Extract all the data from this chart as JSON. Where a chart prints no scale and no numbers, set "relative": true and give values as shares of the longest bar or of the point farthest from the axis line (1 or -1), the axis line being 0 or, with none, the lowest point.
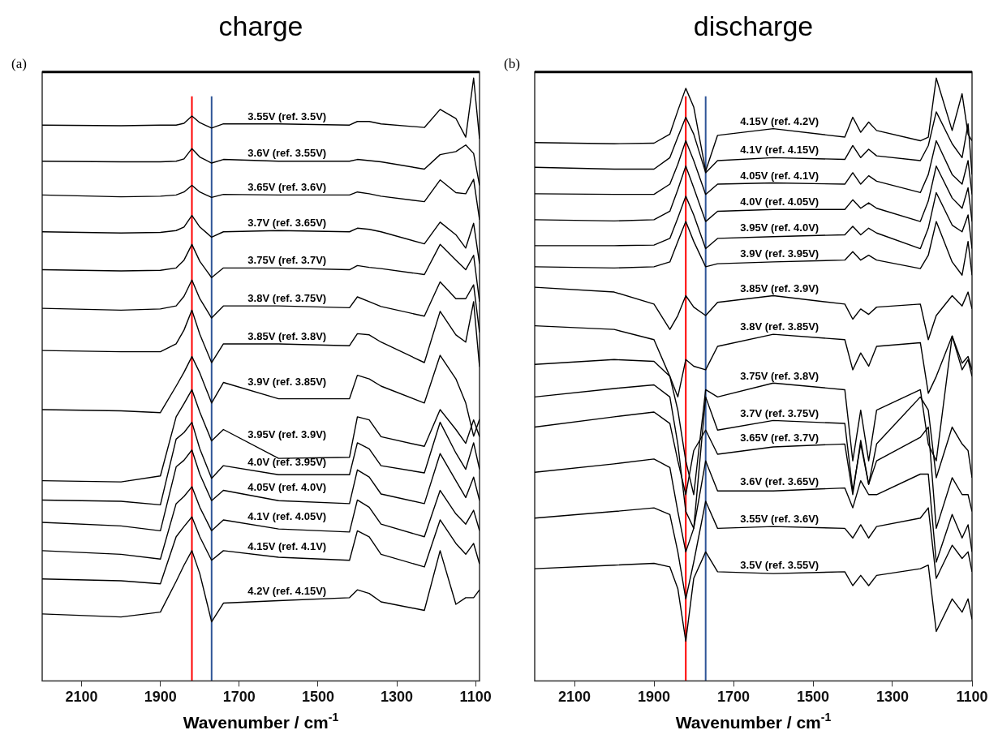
{
  "chart_data": [
    {
      "type": "line",
      "title": "charge",
      "xlabel": "Wavenumber / cm$^{-1}$",
      "annotations": [
        "(a)"
      ],
      "relative": true,
      "marker": "none",
      "xlim": [
        2200,
        1090
      ],
      "xticks": [
        2100,
        1900,
        1700,
        1500,
        1300,
        1100
      ],
      "x": [
        2200,
        2000,
        1900,
        1860,
        1840,
        1820,
        1800,
        1770,
        1740,
        1600,
        1420,
        1400,
        1370,
        1340,
        1230,
        1190,
        1150,
        1125,
        1105,
        1090
      ],
      "ref_lines": [
        {
          "axis": "x",
          "value": 1820,
          "color": "#ff0000"
        },
        {
          "axis": "x",
          "value": 1770,
          "color": "#2f5597"
        }
      ],
      "series": [
        {
          "name": "3.55V (ref. 3.5V)",
          "color": "#000000",
          "values": [
            0.922,
            0.921,
            0.922,
            0.922,
            0.925,
            0.937,
            0.926,
            0.917,
            0.924,
            0.924,
            0.922,
            0.928,
            0.928,
            0.924,
            0.918,
            0.948,
            0.933,
            0.902,
            1.0,
            0.899
          ]
        },
        {
          "name": "3.6V (ref. 3.55V)",
          "color": "#000000",
          "values": [
            0.862,
            0.861,
            0.861,
            0.862,
            0.866,
            0.883,
            0.869,
            0.859,
            0.865,
            0.862,
            0.862,
            0.865,
            0.863,
            0.861,
            0.849,
            0.873,
            0.878,
            0.889,
            0.875,
            0.822
          ]
        },
        {
          "name": "3.65V (ref. 3.6V)",
          "color": "#000000",
          "values": [
            0.806,
            0.803,
            0.804,
            0.806,
            0.811,
            0.822,
            0.811,
            0.802,
            0.807,
            0.806,
            0.806,
            0.811,
            0.808,
            0.804,
            0.795,
            0.831,
            0.81,
            0.808,
            0.832,
            0.765
          ]
        },
        {
          "name": "3.7V (ref. 3.65V)",
          "color": "#000000",
          "values": [
            0.745,
            0.743,
            0.744,
            0.747,
            0.753,
            0.772,
            0.753,
            0.736,
            0.745,
            0.747,
            0.745,
            0.751,
            0.749,
            0.745,
            0.725,
            0.761,
            0.74,
            0.718,
            0.759,
            0.692
          ]
        },
        {
          "name": "3.75V (ref. 3.7V)",
          "color": "#000000",
          "values": [
            0.682,
            0.68,
            0.681,
            0.685,
            0.698,
            0.724,
            0.696,
            0.669,
            0.685,
            0.685,
            0.682,
            0.689,
            0.686,
            0.684,
            0.674,
            0.724,
            0.698,
            0.682,
            0.706,
            0.629
          ]
        },
        {
          "name": "3.8V (ref. 3.75V)",
          "color": "#000000",
          "values": [
            0.618,
            0.615,
            0.617,
            0.622,
            0.638,
            0.665,
            0.634,
            0.602,
            0.622,
            0.622,
            0.619,
            0.637,
            0.629,
            0.621,
            0.605,
            0.662,
            0.634,
            0.634,
            0.657,
            0.578
          ]
        },
        {
          "name": "3.85V (ref. 3.8V)",
          "color": "#000000",
          "values": [
            0.548,
            0.546,
            0.546,
            0.559,
            0.582,
            0.615,
            0.575,
            0.528,
            0.559,
            0.559,
            0.556,
            0.576,
            0.574,
            0.562,
            0.528,
            0.613,
            0.574,
            0.562,
            0.629,
            0.521
          ]
        },
        {
          "name": "3.9V (ref. 3.85V)",
          "color": "#000000",
          "values": [
            0.45,
            0.448,
            0.445,
            0.489,
            0.512,
            0.538,
            0.511,
            0.461,
            0.495,
            0.468,
            0.468,
            0.507,
            0.501,
            0.489,
            0.461,
            0.54,
            0.501,
            0.461,
            0.406,
            0.434
          ]
        },
        {
          "name": "3.95V (ref. 3.9V)",
          "color": "#000000",
          "values": [
            0.332,
            0.33,
            0.34,
            0.438,
            0.46,
            0.483,
            0.446,
            0.398,
            0.417,
            0.369,
            0.371,
            0.438,
            0.433,
            0.405,
            0.389,
            0.45,
            0.417,
            0.394,
            0.433,
            0.405
          ]
        },
        {
          "name": "4.0V (ref. 3.95V)",
          "color": "#000000",
          "values": [
            0.3,
            0.298,
            0.292,
            0.401,
            0.412,
            0.429,
            0.385,
            0.336,
            0.357,
            0.342,
            0.342,
            0.395,
            0.385,
            0.357,
            0.345,
            0.429,
            0.378,
            0.351,
            0.395,
            0.351
          ]
        },
        {
          "name": "4.05V (ref. 4.0V)",
          "color": "#000000",
          "values": [
            0.263,
            0.257,
            0.249,
            0.355,
            0.366,
            0.383,
            0.343,
            0.299,
            0.316,
            0.299,
            0.294,
            0.35,
            0.338,
            0.31,
            0.294,
            0.377,
            0.332,
            0.304,
            0.338,
            0.299
          ]
        },
        {
          "name": "4.1V (ref. 4.05V)",
          "color": "#000000",
          "values": [
            0.216,
            0.21,
            0.202,
            0.294,
            0.306,
            0.322,
            0.288,
            0.249,
            0.267,
            0.252,
            0.247,
            0.3,
            0.288,
            0.26,
            0.239,
            0.316,
            0.277,
            0.26,
            0.283,
            0.249
          ]
        },
        {
          "name": "4.15V (ref. 4.1V)",
          "color": "#000000",
          "values": [
            0.169,
            0.166,
            0.161,
            0.239,
            0.256,
            0.272,
            0.239,
            0.2,
            0.216,
            0.205,
            0.2,
            0.249,
            0.239,
            0.21,
            0.189,
            0.267,
            0.228,
            0.21,
            0.228,
            0.194
          ]
        },
        {
          "name": "4.2V (ref. 4.15V)",
          "color": "#000000",
          "values": [
            0.111,
            0.106,
            0.114,
            0.165,
            0.192,
            0.216,
            0.178,
            0.098,
            0.129,
            0.133,
            0.138,
            0.151,
            0.145,
            0.131,
            0.117,
            0.216,
            0.127,
            0.138,
            0.138,
            0.151
          ]
        }
      ]
    },
    {
      "type": "line",
      "title": "discharge",
      "xlabel": "Wavenumber / cm$^{-1}$",
      "annotations": [
        "(b)"
      ],
      "relative": true,
      "marker": "none",
      "xlim": [
        2200,
        1100
      ],
      "xticks": [
        2100,
        1900,
        1700,
        1500,
        1300,
        1100
      ],
      "x": [
        2200,
        2000,
        1900,
        1860,
        1840,
        1820,
        1800,
        1770,
        1740,
        1600,
        1420,
        1400,
        1380,
        1360,
        1340,
        1230,
        1210,
        1190,
        1150,
        1125,
        1110,
        1100
      ],
      "ref_lines": [
        {
          "axis": "x",
          "value": 1820,
          "color": "#ff0000"
        },
        {
          "axis": "x",
          "value": 1770,
          "color": "#2f5597"
        }
      ],
      "series": [
        {
          "name": "4.15V (ref. 4.2V)",
          "color": "#000000",
          "values": [
            0.893,
            0.891,
            0.892,
            0.907,
            0.946,
            0.983,
            0.952,
            0.846,
            0.905,
            0.916,
            0.902,
            0.935,
            0.91,
            0.927,
            0.913,
            0.896,
            0.902,
            1.0,
            0.913,
            0.974,
            0.907,
            0.896
          ]
        },
        {
          "name": "4.1V (ref. 4.15V)",
          "color": "#000000",
          "values": [
            0.852,
            0.849,
            0.849,
            0.868,
            0.902,
            0.935,
            0.907,
            0.843,
            0.863,
            0.868,
            0.865,
            0.888,
            0.868,
            0.882,
            0.871,
            0.863,
            0.888,
            0.944,
            0.891,
            0.868,
            0.924,
            0.84
          ]
        },
        {
          "name": "4.05V (ref. 4.1V)",
          "color": "#000000",
          "values": [
            0.808,
            0.807,
            0.807,
            0.824,
            0.857,
            0.896,
            0.863,
            0.807,
            0.824,
            0.826,
            0.824,
            0.843,
            0.824,
            0.838,
            0.829,
            0.81,
            0.84,
            0.896,
            0.84,
            0.824,
            0.863,
            0.807
          ]
        },
        {
          "name": "4.0V (ref. 4.05V)",
          "color": "#000000",
          "values": [
            0.765,
            0.763,
            0.765,
            0.779,
            0.815,
            0.854,
            0.818,
            0.762,
            0.779,
            0.782,
            0.782,
            0.798,
            0.784,
            0.793,
            0.784,
            0.762,
            0.796,
            0.854,
            0.801,
            0.784,
            0.818,
            0.762
          ]
        },
        {
          "name": "3.95V (ref. 4.0V)",
          "color": "#000000",
          "values": [
            0.722,
            0.722,
            0.723,
            0.734,
            0.768,
            0.804,
            0.773,
            0.717,
            0.734,
            0.737,
            0.74,
            0.754,
            0.74,
            0.751,
            0.743,
            0.717,
            0.751,
            0.81,
            0.756,
            0.745,
            0.773,
            0.717
          ]
        },
        {
          "name": "3.9V (ref. 3.95V)",
          "color": "#000000",
          "values": [
            0.687,
            0.685,
            0.687,
            0.695,
            0.729,
            0.762,
            0.729,
            0.687,
            0.692,
            0.695,
            0.698,
            0.712,
            0.698,
            0.706,
            0.698,
            0.684,
            0.706,
            0.762,
            0.695,
            0.673,
            0.729,
            0.673
          ]
        },
        {
          "name": "3.85V (ref. 3.9V)",
          "color": "#000000",
          "values": [
            0.653,
            0.645,
            0.625,
            0.583,
            0.606,
            0.639,
            0.62,
            0.606,
            0.628,
            0.639,
            0.625,
            0.6,
            0.617,
            0.608,
            0.62,
            0.625,
            0.566,
            0.606,
            0.639,
            0.622,
            0.645,
            0.617
          ]
        },
        {
          "name": "3.8V (ref. 3.85V)",
          "color": "#000000",
          "values": [
            0.589,
            0.583,
            0.566,
            0.505,
            0.471,
            0.533,
            0.522,
            0.516,
            0.555,
            0.575,
            0.566,
            0.516,
            0.544,
            0.522,
            0.555,
            0.561,
            0.477,
            0.505,
            0.572,
            0.527,
            0.538,
            0.516
          ]
        },
        {
          "name": "3.75V (ref. 3.8V)",
          "color": "#000000",
          "values": [
            0.525,
            0.533,
            0.53,
            0.505,
            0.449,
            0.365,
            0.309,
            0.483,
            0.471,
            0.494,
            0.483,
            0.365,
            0.449,
            0.365,
            0.449,
            0.483,
            0.393,
            0.365,
            0.572,
            0.516,
            0.533,
            0.505
          ]
        },
        {
          "name": "3.7V (ref. 3.75V)",
          "color": "#000000",
          "values": [
            0.471,
            0.485,
            0.491,
            0.471,
            0.393,
            0.281,
            0.253,
            0.471,
            0.416,
            0.432,
            0.427,
            0.315,
            0.393,
            0.326,
            0.393,
            0.471,
            0.449,
            0.337,
            0.421,
            0.393,
            0.382,
            0.337
          ]
        },
        {
          "name": "3.65V (ref. 3.7V)",
          "color": "#000000",
          "values": [
            0.421,
            0.438,
            0.446,
            0.427,
            0.365,
            0.309,
            0.382,
            0.416,
            0.376,
            0.388,
            0.393,
            0.309,
            0.399,
            0.326,
            0.365,
            0.404,
            0.421,
            0.253,
            0.337,
            0.309,
            0.309,
            0.281
          ]
        },
        {
          "name": "3.6V (ref. 3.65V)",
          "color": "#000000",
          "values": [
            0.346,
            0.36,
            0.368,
            0.354,
            0.281,
            0.214,
            0.253,
            0.365,
            0.315,
            0.315,
            0.32,
            0.287,
            0.332,
            0.309,
            0.309,
            0.343,
            0.343,
            0.197,
            0.276,
            0.237,
            0.259,
            0.214
          ]
        },
        {
          "name": "3.55V (ref. 3.6V)",
          "color": "#000000",
          "values": [
            0.27,
            0.281,
            0.287,
            0.276,
            0.214,
            0.136,
            0.197,
            0.298,
            0.253,
            0.256,
            0.253,
            0.237,
            0.259,
            0.237,
            0.256,
            0.27,
            0.287,
            0.17,
            0.225,
            0.203,
            0.214,
            0.181
          ]
        },
        {
          "name": "3.5V (ref. 3.55V)",
          "color": "#000000",
          "values": [
            0.186,
            0.192,
            0.195,
            0.189,
            0.153,
            0.066,
            0.17,
            0.214,
            0.181,
            0.178,
            0.181,
            0.158,
            0.175,
            0.158,
            0.175,
            0.186,
            0.192,
            0.082,
            0.136,
            0.114,
            0.136,
            0.102
          ]
        }
      ]
    }
  ]
}
